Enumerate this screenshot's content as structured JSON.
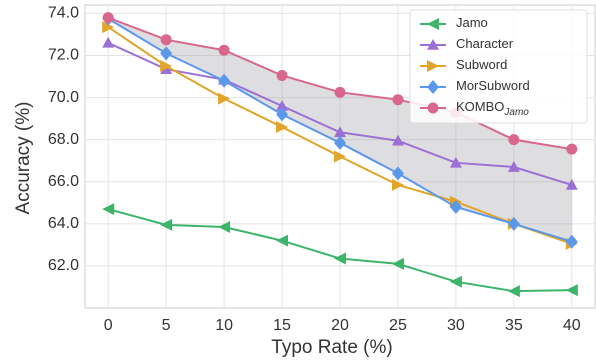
{
  "chart_data": {
    "type": "line",
    "xlabel": "Typo Rate (%)",
    "ylabel": "Accuracy (%)",
    "x": [
      0,
      5,
      10,
      15,
      20,
      25,
      30,
      35,
      40
    ],
    "xlim": [
      -2,
      42
    ],
    "xticks": [
      0,
      5,
      10,
      15,
      20,
      25,
      30,
      35,
      40
    ],
    "ylim": [
      60,
      74.4
    ],
    "yticks": [
      {
        "value": 62,
        "label": "62.0"
      },
      {
        "value": 64,
        "label": "64.0"
      },
      {
        "value": 66,
        "label": "66.0"
      },
      {
        "value": 68,
        "label": "68.0"
      },
      {
        "value": 70,
        "label": "70.0"
      },
      {
        "value": 72,
        "label": "72.0"
      },
      {
        "value": 74,
        "label": "74.0"
      }
    ],
    "grid": true,
    "legend": "upper right",
    "series": [
      {
        "name": "Jamo",
        "color": "#3cb46a",
        "marker": "triangle-left",
        "values": [
          64.7,
          63.95,
          63.85,
          63.2,
          62.35,
          62.1,
          61.25,
          60.8,
          60.85
        ]
      },
      {
        "name": "Character",
        "color": "#9b70d4",
        "marker": "triangle-up",
        "values": [
          72.6,
          71.35,
          70.85,
          69.6,
          68.35,
          67.95,
          66.9,
          66.7,
          65.85
        ]
      },
      {
        "name": "Subword",
        "color": "#e2a52a",
        "marker": "triangle-right",
        "values": [
          73.35,
          71.5,
          69.95,
          68.6,
          67.2,
          65.85,
          65.05,
          64.0,
          63.05
        ]
      },
      {
        "name": "MorSubword",
        "color": "#5b98ea",
        "marker": "diamond",
        "values": [
          73.75,
          72.1,
          70.8,
          69.2,
          67.85,
          66.4,
          64.8,
          64.0,
          63.15
        ]
      },
      {
        "name": "KOMBO",
        "subscript": "Jamo",
        "color": "#d9678c",
        "marker": "circle",
        "values": [
          73.8,
          72.75,
          72.25,
          71.05,
          70.25,
          69.9,
          69.3,
          68.0,
          67.55
        ]
      }
    ]
  }
}
